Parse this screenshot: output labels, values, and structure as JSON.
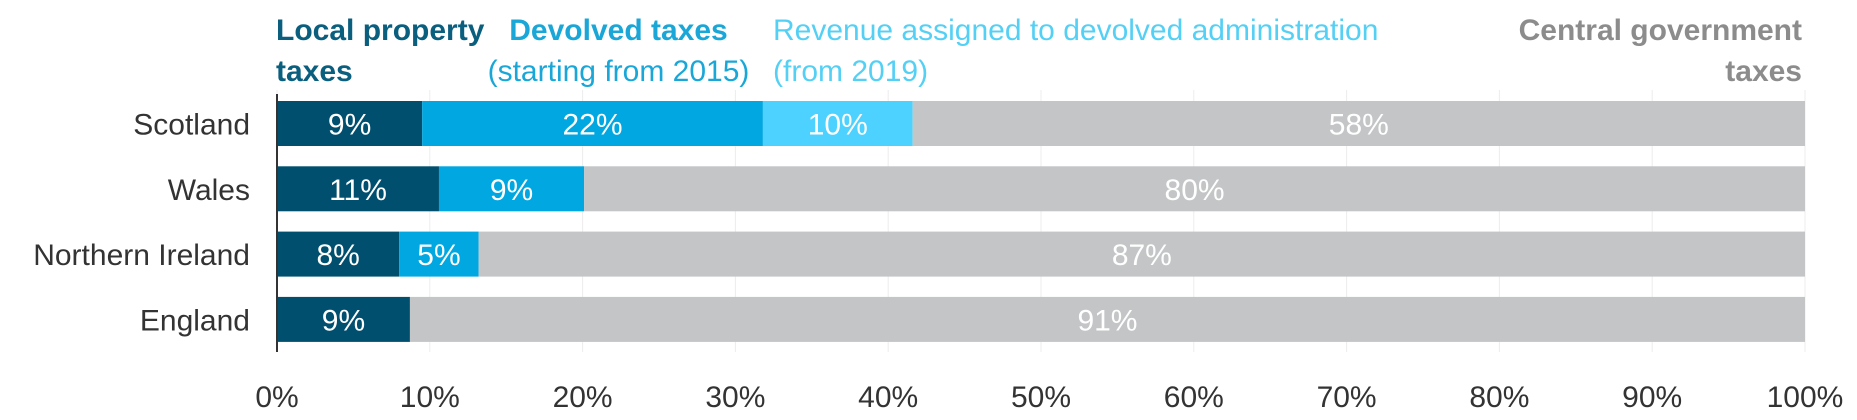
{
  "chart_data": {
    "type": "bar",
    "orientation": "horizontal",
    "stacked": true,
    "categories": [
      "Scotland",
      "Wales",
      "Northern Ireland",
      "England"
    ],
    "series": [
      {
        "name": "Local property taxes",
        "values": [
          9.5,
          10.6,
          8.0,
          8.7
        ],
        "labels": [
          "9%",
          "11%",
          "8%",
          "9%"
        ],
        "color": "#004f6f"
      },
      {
        "name": "Devolved taxes (starting from 2015)",
        "values": [
          22.3,
          9.5,
          5.2,
          0
        ],
        "labels": [
          "22%",
          "9%",
          "5%",
          ""
        ],
        "color": "#00a7e1"
      },
      {
        "name": "Revenue assigned to devolved administration (from 2019)",
        "values": [
          9.8,
          0,
          0,
          0
        ],
        "labels": [
          "10%",
          "",
          "",
          ""
        ],
        "color": "#4dd2ff"
      },
      {
        "name": "Central government taxes",
        "values": [
          58.4,
          79.9,
          86.8,
          91.3
        ],
        "labels": [
          "58%",
          "80%",
          "87%",
          "91%"
        ],
        "color": "#c3c5c6"
      }
    ],
    "xlim": [
      0,
      100
    ],
    "x_ticks": [
      "0%",
      "10%",
      "20%",
      "30%",
      "40%",
      "50%",
      "60%",
      "70%",
      "80%",
      "90%",
      "100%"
    ],
    "grid": true,
    "legend": {
      "placement": "top",
      "entries": [
        {
          "line1": "Local property",
          "line2": "taxes",
          "color": "#0a5e7e"
        },
        {
          "line1": "Devolved taxes",
          "line2": "(starting from 2015)",
          "color": "#1aa7d8"
        },
        {
          "line1": "Revenue assigned to devolved administration",
          "line2": "(from 2019)",
          "color": "#55d0f5"
        },
        {
          "line1": "Central government",
          "line2": "taxes",
          "color": "#8c8c8c"
        }
      ]
    }
  }
}
